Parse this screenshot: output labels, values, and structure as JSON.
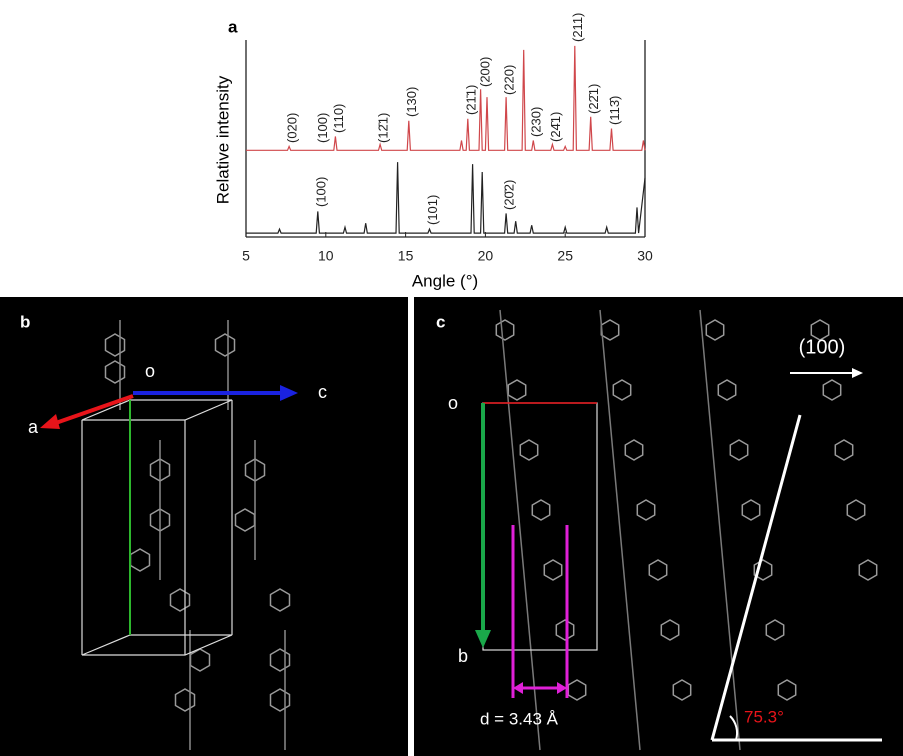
{
  "chart_data": {
    "type": "line",
    "panel_label": "a",
    "x_label": "Angle (°)",
    "y_label": "Relative intensity",
    "xlim": [
      5,
      30
    ],
    "xticks": [
      5,
      10,
      15,
      20,
      25,
      30
    ],
    "ylim": [
      0,
      100
    ],
    "series": [
      {
        "color": "#d0474b",
        "x": [
          5,
          7.6,
          7.7,
          7.8,
          10.5,
          10.6,
          10.7,
          13.3,
          13.4,
          13.5,
          15.1,
          15.2,
          15.3,
          18.4,
          18.5,
          18.6,
          18.8,
          18.9,
          19.0,
          19.6,
          19.7,
          19.8,
          20.0,
          20.1,
          20.2,
          21.2,
          21.3,
          21.4,
          22.3,
          22.4,
          22.5,
          22.9,
          23.0,
          23.1,
          24.1,
          24.2,
          24.3,
          24.9,
          25.0,
          25.1,
          25.5,
          25.6,
          25.7,
          26.5,
          26.6,
          26.7,
          27.8,
          27.9,
          28.0,
          29.8,
          29.9,
          30
        ],
        "values": [
          44,
          44,
          46,
          44,
          44,
          51,
          44,
          44,
          47,
          44,
          44,
          59,
          44,
          44,
          49,
          44,
          44,
          60,
          44,
          44,
          75,
          44,
          44,
          71,
          44,
          44,
          71,
          44,
          44,
          95,
          44,
          44,
          49,
          44,
          44,
          47,
          44,
          44,
          46,
          44,
          44,
          97,
          44,
          44,
          61,
          44,
          44,
          55,
          44,
          44,
          49,
          44
        ]
      },
      {
        "color": "#222222",
        "x": [
          5,
          7.0,
          7.1,
          7.2,
          9.4,
          9.5,
          9.6,
          11.1,
          11.2,
          11.3,
          12.4,
          12.5,
          12.6,
          14.4,
          14.5,
          14.6,
          16.4,
          16.5,
          16.6,
          19.1,
          19.2,
          19.3,
          19.7,
          19.8,
          19.9,
          21.2,
          21.3,
          21.4,
          21.8,
          21.9,
          22.0,
          22.8,
          22.9,
          23.0,
          24.9,
          25.0,
          25.1,
          27.5,
          27.6,
          27.7,
          29.4,
          29.5,
          29.6,
          30
        ],
        "values": [
          2,
          2,
          4,
          2,
          2,
          13,
          2,
          2,
          5,
          2,
          2,
          7,
          2,
          2,
          38,
          2,
          2,
          4,
          2,
          2,
          37,
          2,
          2,
          33,
          2,
          2,
          12,
          2,
          2,
          8,
          2,
          2,
          6,
          2,
          2,
          5,
          2,
          2,
          5,
          2,
          2,
          15,
          2,
          30
        ]
      }
    ],
    "annotations": [
      "(020)",
      "(100)",
      "(110)",
      "(12̄1)",
      "(130)",
      "(21̄1)",
      "(200)",
      "(220)",
      "(230)",
      "(24̄1)",
      "(211)",
      "(22̄1)",
      "(113̄)",
      "(100)",
      "(101)",
      "(20̄2)"
    ]
  },
  "panel_b": {
    "label": "b",
    "origin": "o",
    "axis_a": "a",
    "axis_c": "c"
  },
  "panel_c": {
    "label": "c",
    "direction": "(100)",
    "origin": "o",
    "axis_b": "b",
    "spacing": "d = 3.43 Å",
    "angle": "75.3°"
  }
}
